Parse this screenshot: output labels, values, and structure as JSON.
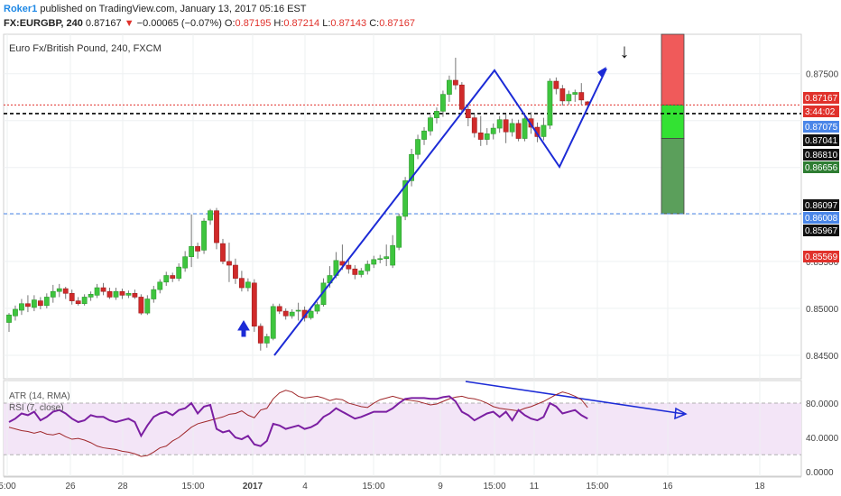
{
  "header": {
    "user": "Roker1",
    "published": "published on TradingView.com, January 13, 2017 05:16 EST",
    "symbol": "FX:EURGBP, 240",
    "last": "0.87167",
    "arrow": "▼",
    "change": "−0.00065 (−0.07%)",
    "o_label": "O:",
    "o_value": "0.87195",
    "h_label": "H:",
    "h_value": "0.87214",
    "l_label": "L:",
    "l_value": "0.87143",
    "c_label": "C:",
    "c_value": "0.87167"
  },
  "chart_data": [
    {
      "type": "candlestick",
      "title": "Euro Fx/British Pound, 240, FXCM",
      "y_ticks": [
        "0.87500",
        "0.85500",
        "0.85000",
        "0.84500"
      ],
      "x_ticks": [
        "5:00",
        "26",
        "28",
        "15:00",
        "2017",
        "4",
        "15:00",
        "9",
        "15:00",
        "11",
        "15:00",
        "16",
        "18"
      ],
      "ylim": [
        0.8425,
        0.8792
      ],
      "price_labels": [
        {
          "text": "0.87167",
          "color": "#e0312b"
        },
        {
          "text": "3:44:02",
          "color": "#e0312b"
        },
        {
          "text": "0.87075",
          "color": "#4a86e8"
        },
        {
          "text": "0.87041",
          "color": "#111111"
        },
        {
          "text": "0.86810",
          "color": "#111111"
        },
        {
          "text": "0.86656",
          "color": "#2e7d32"
        },
        {
          "text": "0.86097",
          "color": "#111111"
        },
        {
          "text": "0.86008",
          "color": "#4a86e8"
        },
        {
          "text": "0.85967",
          "color": "#111111"
        },
        {
          "text": "0.85569",
          "color": "#e0312b"
        }
      ],
      "candles": [
        [
          0.8485,
          0.8493,
          0.8475,
          0.8495
        ],
        [
          0.8492,
          0.8499,
          0.8487,
          0.8503
        ],
        [
          0.8498,
          0.8505,
          0.8493,
          0.851
        ],
        [
          0.8505,
          0.8502,
          0.8496,
          0.8514
        ],
        [
          0.8501,
          0.8509,
          0.8497,
          0.8514
        ],
        [
          0.8508,
          0.8503,
          0.8499,
          0.8512
        ],
        [
          0.8503,
          0.8512,
          0.85,
          0.8516
        ],
        [
          0.8512,
          0.8518,
          0.8506,
          0.8525
        ],
        [
          0.8518,
          0.8521,
          0.8512,
          0.8526
        ],
        [
          0.8521,
          0.8516,
          0.851,
          0.8523
        ],
        [
          0.8516,
          0.8508,
          0.8504,
          0.852
        ],
        [
          0.8508,
          0.8505,
          0.8503,
          0.8512
        ],
        [
          0.8505,
          0.8512,
          0.8503,
          0.8515
        ],
        [
          0.8512,
          0.8515,
          0.8508,
          0.8518
        ],
        [
          0.8514,
          0.8522,
          0.8511,
          0.8526
        ],
        [
          0.8522,
          0.8518,
          0.8514,
          0.8527
        ],
        [
          0.8518,
          0.8512,
          0.851,
          0.8522
        ],
        [
          0.8512,
          0.8518,
          0.8509,
          0.8522
        ],
        [
          0.8518,
          0.8514,
          0.851,
          0.8521
        ],
        [
          0.8514,
          0.8516,
          0.8511,
          0.8519
        ],
        [
          0.8516,
          0.8512,
          0.851,
          0.852
        ],
        [
          0.8512,
          0.8495,
          0.8493,
          0.8515
        ],
        [
          0.8495,
          0.851,
          0.8493,
          0.8514
        ],
        [
          0.851,
          0.852,
          0.8506,
          0.8524
        ],
        [
          0.852,
          0.8528,
          0.8516,
          0.8531
        ],
        [
          0.8528,
          0.8535,
          0.8524,
          0.8539
        ],
        [
          0.8535,
          0.8532,
          0.8528,
          0.8538
        ],
        [
          0.8532,
          0.8544,
          0.8529,
          0.8548
        ],
        [
          0.8543,
          0.8555,
          0.8539,
          0.8561
        ],
        [
          0.8555,
          0.8566,
          0.8544,
          0.86
        ],
        [
          0.8566,
          0.8561,
          0.8553,
          0.857
        ],
        [
          0.8562,
          0.8593,
          0.8558,
          0.8596
        ],
        [
          0.8594,
          0.8604,
          0.8589,
          0.8606
        ],
        [
          0.8604,
          0.857,
          0.8563,
          0.8607
        ],
        [
          0.8569,
          0.855,
          0.8547,
          0.8574
        ],
        [
          0.855,
          0.8546,
          0.8528,
          0.857
        ],
        [
          0.8546,
          0.8532,
          0.8526,
          0.8553
        ],
        [
          0.8532,
          0.8522,
          0.8518,
          0.854
        ],
        [
          0.8522,
          0.8528,
          0.8518,
          0.8532
        ],
        [
          0.8527,
          0.8481,
          0.8475,
          0.8531
        ],
        [
          0.8481,
          0.8463,
          0.8455,
          0.8484
        ],
        [
          0.8463,
          0.847,
          0.8458,
          0.8473
        ],
        [
          0.8468,
          0.8502,
          0.8466,
          0.8505
        ],
        [
          0.8502,
          0.8497,
          0.8494,
          0.8505
        ],
        [
          0.8497,
          0.8492,
          0.8488,
          0.85
        ],
        [
          0.8492,
          0.8496,
          0.8489,
          0.8499
        ],
        [
          0.8497,
          0.8498,
          0.8487,
          0.8506
        ],
        [
          0.8498,
          0.849,
          0.8486,
          0.8502
        ],
        [
          0.849,
          0.8497,
          0.8488,
          0.8502
        ],
        [
          0.8497,
          0.8504,
          0.8494,
          0.8507
        ],
        [
          0.8504,
          0.8527,
          0.8502,
          0.8532
        ],
        [
          0.8527,
          0.8535,
          0.8522,
          0.8545
        ],
        [
          0.8535,
          0.8551,
          0.8532,
          0.856
        ],
        [
          0.855,
          0.8546,
          0.8541,
          0.8568
        ],
        [
          0.8546,
          0.8542,
          0.8537,
          0.8551
        ],
        [
          0.8542,
          0.8536,
          0.8531,
          0.8546
        ],
        [
          0.8536,
          0.854,
          0.8533,
          0.8543
        ],
        [
          0.854,
          0.8547,
          0.8536,
          0.8551
        ],
        [
          0.8547,
          0.8552,
          0.8543,
          0.8556
        ],
        [
          0.8552,
          0.8553,
          0.8548,
          0.8557
        ],
        [
          0.8553,
          0.8555,
          0.8545,
          0.8568
        ],
        [
          0.8546,
          0.8567,
          0.8543,
          0.8578
        ],
        [
          0.8565,
          0.8598,
          0.8562,
          0.8601
        ],
        [
          0.8598,
          0.8636,
          0.8594,
          0.864
        ],
        [
          0.8636,
          0.8664,
          0.863,
          0.867
        ],
        [
          0.8664,
          0.868,
          0.8659,
          0.8685
        ],
        [
          0.868,
          0.8689,
          0.8674,
          0.8693
        ],
        [
          0.8689,
          0.8703,
          0.8684,
          0.8706
        ],
        [
          0.8703,
          0.871,
          0.8697,
          0.8714
        ],
        [
          0.871,
          0.8728,
          0.8704,
          0.8732
        ],
        [
          0.8728,
          0.8743,
          0.872,
          0.8748
        ],
        [
          0.8743,
          0.8738,
          0.8733,
          0.8767
        ],
        [
          0.8738,
          0.8712,
          0.8708,
          0.8741
        ],
        [
          0.8712,
          0.8703,
          0.8694,
          0.8718
        ],
        [
          0.8703,
          0.8687,
          0.8682,
          0.8707
        ],
        [
          0.8687,
          0.868,
          0.8673,
          0.8705
        ],
        [
          0.868,
          0.8686,
          0.8674,
          0.8692
        ],
        [
          0.8686,
          0.8692,
          0.868,
          0.8697
        ],
        [
          0.8692,
          0.8701,
          0.8687,
          0.8705
        ],
        [
          0.8701,
          0.8688,
          0.8676,
          0.8707
        ],
        [
          0.8688,
          0.8697,
          0.8683,
          0.8702
        ],
        [
          0.8697,
          0.8681,
          0.8678,
          0.8701
        ],
        [
          0.8681,
          0.8702,
          0.8678,
          0.8708
        ],
        [
          0.8702,
          0.8693,
          0.8686,
          0.8709
        ],
        [
          0.8693,
          0.8683,
          0.8677,
          0.8698
        ],
        [
          0.8683,
          0.8695,
          0.8679,
          0.8703
        ],
        [
          0.8695,
          0.8742,
          0.8691,
          0.8745
        ],
        [
          0.8742,
          0.8734,
          0.8728,
          0.8746
        ],
        [
          0.8734,
          0.8721,
          0.8716,
          0.8738
        ],
        [
          0.8721,
          0.8728,
          0.8717,
          0.8732
        ],
        [
          0.8728,
          0.873,
          0.872,
          0.8733
        ],
        [
          0.873,
          0.8722,
          0.8717,
          0.874
        ],
        [
          0.872,
          0.8717,
          0.8714,
          0.8721
        ]
      ],
      "hlines": [
        {
          "value": 0.87167,
          "color": "#e0312b",
          "style": "dotted"
        },
        {
          "value": 0.87075,
          "color": "#000000",
          "style": "dashed"
        },
        {
          "value": 0.86008,
          "color": "#4a86e8",
          "style": "dashed"
        }
      ],
      "position_box": {
        "entry": 0.87167,
        "stop": 0.875,
        "target1": 0.8681,
        "target2": 0.86008
      }
    },
    {
      "type": "line",
      "title": "ATR (14, RMA)",
      "color": "#a0282b",
      "values": [
        52,
        50,
        48,
        47,
        45,
        47,
        44,
        43,
        45,
        41,
        38,
        39,
        37,
        34,
        30,
        28,
        27,
        26,
        24,
        23,
        21,
        18,
        19,
        23,
        28,
        30,
        36,
        40,
        46,
        52,
        56,
        58,
        60,
        62,
        64,
        67,
        68,
        71,
        66,
        63,
        72,
        74,
        85,
        92,
        95,
        93,
        88,
        86,
        87,
        88,
        86,
        83,
        85,
        84,
        80,
        78,
        76,
        75,
        80,
        84,
        86,
        88,
        86,
        84,
        83,
        82,
        80,
        78,
        79,
        82,
        85,
        87,
        88,
        86,
        85,
        83,
        80,
        76,
        74,
        73,
        72,
        71,
        74,
        76,
        79,
        82,
        86,
        90,
        93,
        91,
        88,
        84,
        75
      ]
    },
    {
      "type": "line",
      "title": "RSI (7, close)",
      "color": "#7b1fa2",
      "y_ticks": [
        "80.0000",
        "40.0000",
        "0.0000"
      ],
      "ylim": [
        -5,
        100
      ],
      "values": [
        58,
        62,
        68,
        66,
        70,
        60,
        64,
        70,
        72,
        68,
        62,
        58,
        60,
        66,
        64,
        64,
        60,
        58,
        60,
        62,
        58,
        42,
        54,
        64,
        68,
        70,
        66,
        72,
        74,
        80,
        68,
        76,
        78,
        50,
        46,
        48,
        40,
        38,
        42,
        32,
        30,
        36,
        56,
        54,
        50,
        52,
        54,
        50,
        52,
        56,
        64,
        68,
        74,
        70,
        66,
        62,
        64,
        67,
        70,
        70,
        70,
        74,
        80,
        85,
        86,
        86,
        86,
        85,
        85,
        87,
        88,
        82,
        70,
        66,
        60,
        64,
        68,
        70,
        64,
        70,
        60,
        72,
        66,
        62,
        60,
        64,
        80,
        76,
        68,
        70,
        72,
        66,
        62
      ]
    }
  ],
  "annotations": {
    "cursor_down": "↓",
    "atr_label": "ATR (14, RMA)",
    "rsi_label": "RSI (7, close)"
  }
}
